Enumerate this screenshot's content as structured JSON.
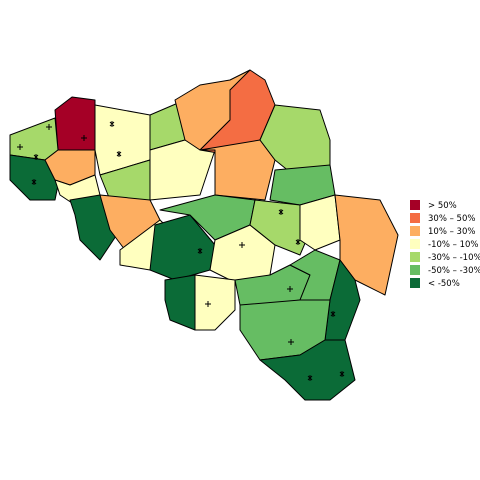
{
  "legend": {
    "items": [
      {
        "label": "> 50%",
        "color": "#a50026"
      },
      {
        "label": "30%  –  50%",
        "color": "#f46d43"
      },
      {
        "label": "10%  –  30%",
        "color": "#fdae61"
      },
      {
        "label": "-10%  –  10%",
        "color": "#ffffbf"
      },
      {
        "label": "-30%  –  -10%",
        "color": "#a6d96a"
      },
      {
        "label": "-50%  –  -30%",
        "color": "#66bd63"
      },
      {
        "label": "< -50%",
        "color": "#0b6b37"
      }
    ]
  }
}
